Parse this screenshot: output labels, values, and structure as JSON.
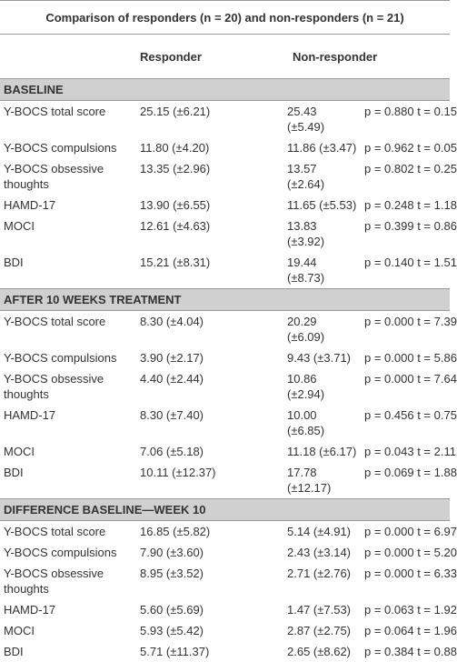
{
  "title": "Comparison of responders (n = 20) and non-responders (n = 21)",
  "header": [
    "Responder",
    "Non-responder"
  ],
  "sections": [
    {
      "name": "BASELINE",
      "rows": [
        [
          "Y-BOCS total score",
          "25.15 (±6.21)",
          "25.43 (±5.49)",
          "p = 0.880 t = 0.15"
        ],
        [
          "Y-BOCS compulsions",
          "11.80 (±4.20)",
          "11.86 (±3.47)",
          "p = 0.962 t = 0.05"
        ],
        [
          "Y-BOCS obsessive thoughts",
          "13.35 (±2.96)",
          "13.57 (±2.64)",
          "p = 0.802 t = 0.25"
        ],
        [
          "HAMD-17",
          "13.90 (±6.55)",
          "11.65 (±5.53)",
          "p = 0.248 t = 1.18"
        ],
        [
          "MOCI",
          "12.61 (±4.63)",
          "13.83 (±3.92)",
          "p = 0.399 t = 0.86"
        ],
        [
          "BDI",
          "15.21 (±8.31)",
          "19.44 (±8.73)",
          "p = 0.140 t = 1.51"
        ]
      ]
    },
    {
      "name": "AFTER 10 WEEKS TREATMENT",
      "rows": [
        [
          "Y-BOCS total score",
          "8.30 (±4.04)",
          "20.29 (±6.09)",
          "p = 0.000 t = 7.39"
        ],
        [
          "Y-BOCS compulsions",
          "3.90 (±2.17)",
          "9.43 (±3.71)",
          "p = 0.000 t = 5.86"
        ],
        [
          "Y-BOCS obsessive thoughts",
          "4.40 (±2.44)",
          "10.86 (±2.94)",
          "p = 0.000 t = 7.64"
        ],
        [
          "HAMD-17",
          "8.30 (±7.40)",
          "10.00 (±6.85)",
          "p = 0.456 t = 0.75"
        ],
        [
          "MOCI",
          "7.06 (±5.18)",
          "11.18 (±6.17)",
          "p = 0.043 t = 2.11"
        ],
        [
          "BDI",
          "10.11 (±12.37)",
          "17.78 (±12.17)",
          "p = 0.069 t = 1.88"
        ]
      ]
    },
    {
      "name": "DIFFERENCE BASELINE—WEEK 10",
      "rows": [
        [
          "Y-BOCS total score",
          "16.85 (±5.82)",
          "5.14 (±4.91)",
          "p = 0.000 t = 6.97"
        ],
        [
          "Y-BOCS compulsions",
          "7.90 (±3.60)",
          "2.43 (±3.14)",
          "p = 0.000 t = 5.20"
        ],
        [
          "Y-BOCS obsessive thoughts",
          "8.95 (±3.52)",
          "2.71 (±2.76)",
          "p = 0.000 t = 6.33"
        ],
        [
          "HAMD-17",
          "5.60 (±5.69)",
          "1.47 (±7.53)",
          "p = 0.063 t = 1.92"
        ],
        [
          "MOCI",
          "5.93 (±5.42)",
          "2.87 (±2.75)",
          "p = 0.064 t = 1.96"
        ],
        [
          "BDI",
          "5.71 (±11.37)",
          "2.65 (±8.62)",
          "p = 0.384 t = 0.88"
        ]
      ]
    }
  ]
}
